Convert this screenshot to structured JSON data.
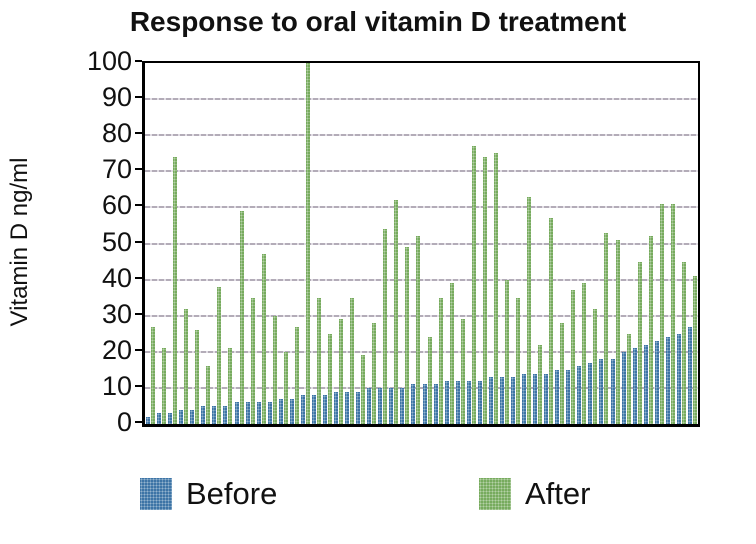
{
  "title": "Response to oral vitamin D treatment",
  "y_axis": {
    "label": "Vitamin D ng/ml",
    "ticks": [
      0,
      10,
      20,
      30,
      40,
      50,
      60,
      70,
      80,
      90,
      100
    ],
    "min": 0,
    "max": 100
  },
  "legend": {
    "before_label": "Before",
    "after_label": "After"
  },
  "colors": {
    "before": "#3d74a6",
    "after": "#77ab5e",
    "gridline": "#b3acb8",
    "axis": "#000000",
    "text": "#111111"
  },
  "chart_data": {
    "type": "bar",
    "title": "Response to oral vitamin D treatment",
    "xlabel": "",
    "ylabel": "Vitamin D ng/ml",
    "ylim": [
      0,
      100
    ],
    "grid": true,
    "legend_position": "bottom",
    "series": [
      {
        "name": "Before",
        "color": "#3d74a6",
        "values": [
          2,
          3,
          3,
          4,
          4,
          5,
          5,
          5,
          6,
          6,
          6,
          6,
          7,
          7,
          8,
          8,
          8,
          9,
          9,
          9,
          10,
          10,
          10,
          10,
          11,
          11,
          11,
          12,
          12,
          12,
          12,
          13,
          13,
          13,
          14,
          14,
          14,
          15,
          15,
          16,
          17,
          18,
          18,
          20,
          21,
          22,
          23,
          24,
          25,
          27
        ]
      },
      {
        "name": "After",
        "color": "#77ab5e",
        "values": [
          27,
          21,
          74,
          32,
          26,
          16,
          38,
          21,
          59,
          35,
          47,
          30,
          20,
          27,
          100,
          35,
          25,
          29,
          35,
          19,
          28,
          54,
          62,
          49,
          52,
          24,
          35,
          39,
          29,
          77,
          74,
          75,
          40,
          35,
          63,
          22,
          57,
          28,
          37,
          39,
          32,
          53,
          51,
          25,
          45,
          52,
          61,
          61,
          45,
          41
        ]
      }
    ]
  }
}
